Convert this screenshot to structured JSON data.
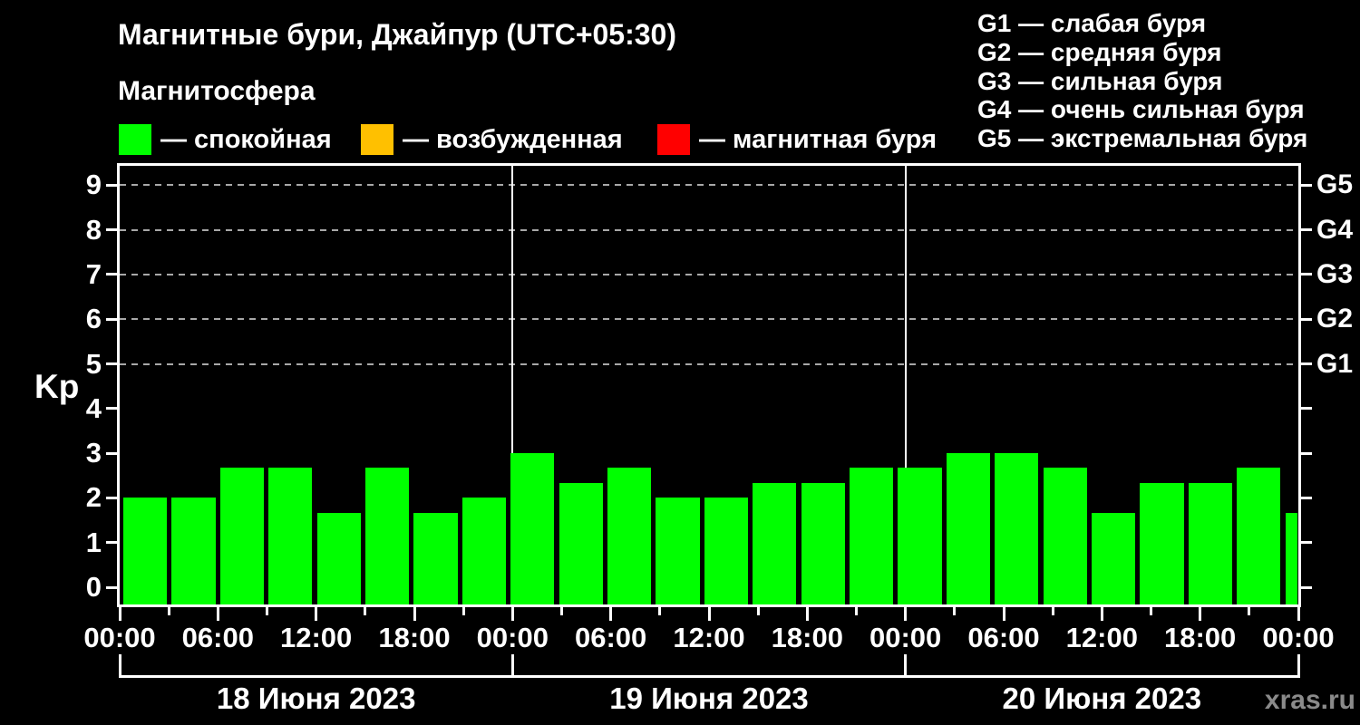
{
  "watermark": "xras.ru",
  "chart_data": {
    "type": "bar",
    "title": "Магнитные бури, Джайпур (UTC+05:30)",
    "subtitle": "Магнитосфера",
    "ylabel": "Kp",
    "ylim": [
      0,
      9.6
    ],
    "yticks": [
      0,
      1,
      2,
      3,
      4,
      5,
      6,
      7,
      8,
      9
    ],
    "grid": "dashed horizontal lines at Kp 5-9 only",
    "grid_levels_kp": [
      5,
      6,
      7,
      8,
      9
    ],
    "right_axis": [
      {
        "kp": 5,
        "label": "G1"
      },
      {
        "kp": 6,
        "label": "G2"
      },
      {
        "kp": 7,
        "label": "G3"
      },
      {
        "kp": 8,
        "label": "G4"
      },
      {
        "kp": 9,
        "label": "G5"
      }
    ],
    "legend": [
      {
        "color": "#00ff00",
        "label": "— спокойная"
      },
      {
        "color": "#ffc000",
        "label": "— возбужденная"
      },
      {
        "color": "#ff0000",
        "label": "— магнитная буря"
      }
    ],
    "storm_scale_legend": [
      "G1 — слабая буря",
      "G2 — средняя буря",
      "G3 — сильная буря",
      "G4 — очень сильная буря",
      "G5 — экстремальная буря"
    ],
    "total_hours": 72,
    "bar_interval_hours": 3,
    "x_minor_every_hours": 3,
    "x_major_every_hours": 6,
    "x_tick_labels": [
      "00:00",
      "06:00",
      "12:00",
      "18:00",
      "00:00",
      "06:00",
      "12:00",
      "18:00",
      "00:00",
      "06:00",
      "12:00",
      "18:00",
      "00:00"
    ],
    "day_labels": [
      "18 Июня 2023",
      "19 Июня 2023",
      "20 Июня 2023"
    ],
    "bar_color": "#00ff00",
    "values": [
      2.0,
      2.0,
      2.67,
      2.67,
      1.67,
      2.67,
      1.67,
      2.0,
      3.0,
      2.33,
      2.67,
      2.0,
      2.0,
      2.33,
      2.33,
      2.67,
      2.67,
      3.0,
      3.0,
      2.67,
      1.67,
      2.33,
      2.33,
      2.67
    ],
    "partial_last_value": 1.67
  }
}
